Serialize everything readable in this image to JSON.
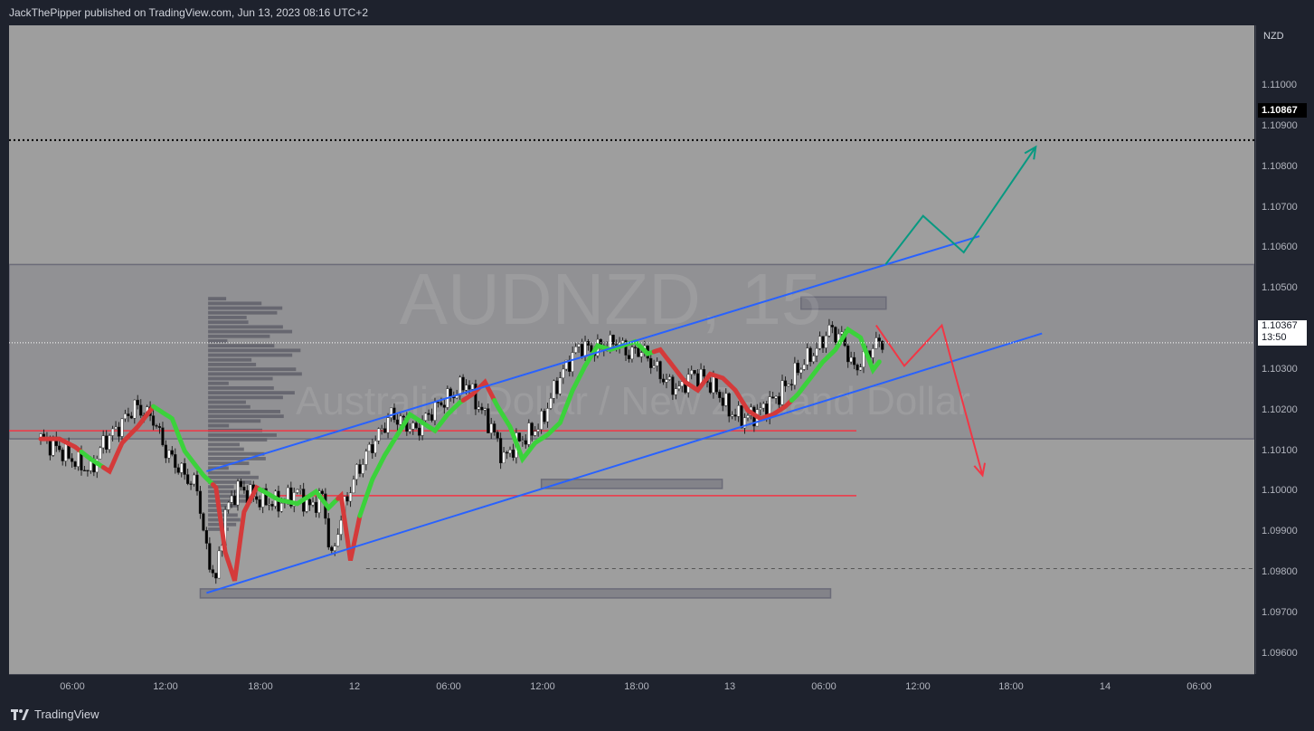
{
  "header": {
    "publisher_text": "JackThePipper published on TradingView.com, Jun 13, 2023 08:16 UTC+2"
  },
  "footer": {
    "brand": "TradingView"
  },
  "watermark": {
    "symbol": "AUDNZD, 15",
    "name": "Australian Dollar / New Zealand Dollar"
  },
  "price_scale": {
    "currency": "NZD",
    "ticks": [
      "1.11000",
      "1.10900",
      "1.10800",
      "1.10700",
      "1.10600",
      "1.10500",
      "1.10400",
      "1.10300",
      "1.10200",
      "1.10100",
      "1.10000",
      "1.09900",
      "1.09800",
      "1.09700",
      "1.09600"
    ],
    "target_price": "1.10867",
    "last_price": "1.10367",
    "countdown": "13:50"
  },
  "time_scale": {
    "ticks": [
      "06:00",
      "12:00",
      "18:00",
      "12",
      "06:00",
      "12:00",
      "18:00",
      "13",
      "06:00",
      "12:00",
      "18:00",
      "14",
      "06:00"
    ]
  },
  "colors": {
    "bull_candle": "#ffffff",
    "bear_candle": "#000000",
    "channel": "#2962ff",
    "support_resistance": "#f23645",
    "up_arrow": "#089981",
    "down_arrow": "#f23645",
    "ma_up": "#3bd23b",
    "ma_down": "#d43a3a"
  },
  "chart_data": {
    "type": "candlestick",
    "symbol": "AUDNZD",
    "timeframe": "15",
    "ylim": [
      1.0955,
      1.1115
    ],
    "x": [
      "06:00",
      "12:00",
      "18:00",
      "12",
      "06:00",
      "12:00",
      "18:00",
      "13",
      "06:00"
    ],
    "close_path": [
      [
        0,
        1.1013
      ],
      [
        0.5,
        1.1011
      ],
      [
        1,
        1.1008
      ],
      [
        1.6,
        1.1005
      ],
      [
        2,
        1.1012
      ],
      [
        2.5,
        1.1016
      ],
      [
        3,
        1.1021
      ],
      [
        3.6,
        1.1018
      ],
      [
        4,
        1.101
      ],
      [
        4.6,
        1.1004
      ],
      [
        5,
        1.1001
      ],
      [
        5.3,
        1.0985
      ],
      [
        5.6,
        1.0978
      ],
      [
        5.9,
        1.0995
      ],
      [
        6.3,
        1.1001
      ],
      [
        7,
        1.0998
      ],
      [
        7.6,
        1.0997
      ],
      [
        8.2,
        1.1
      ],
      [
        8.6,
        1.0996
      ],
      [
        9,
        1.0999
      ],
      [
        9.3,
        1.0983
      ],
      [
        9.6,
        1.0994
      ],
      [
        10,
        1.1003
      ],
      [
        10.4,
        1.1009
      ],
      [
        10.8,
        1.1014
      ],
      [
        11.2,
        1.1019
      ],
      [
        11.6,
        1.1017
      ],
      [
        12,
        1.1015
      ],
      [
        12.4,
        1.1019
      ],
      [
        12.8,
        1.1022
      ],
      [
        13.2,
        1.1024
      ],
      [
        13.6,
        1.1027
      ],
      [
        14,
        1.1021
      ],
      [
        14.4,
        1.1016
      ],
      [
        14.8,
        1.1008
      ],
      [
        15.2,
        1.1012
      ],
      [
        15.6,
        1.1014
      ],
      [
        16,
        1.1017
      ],
      [
        16.4,
        1.1025
      ],
      [
        16.8,
        1.1031
      ],
      [
        17.2,
        1.1036
      ],
      [
        17.6,
        1.1035
      ],
      [
        18,
        1.1036
      ],
      [
        18.4,
        1.1037
      ],
      [
        18.8,
        1.1034
      ],
      [
        19.2,
        1.1035
      ],
      [
        19.6,
        1.1031
      ],
      [
        20,
        1.1027
      ],
      [
        20.4,
        1.1025
      ],
      [
        20.8,
        1.1029
      ],
      [
        21.2,
        1.1028
      ],
      [
        21.6,
        1.1025
      ],
      [
        22,
        1.102
      ],
      [
        22.4,
        1.1018
      ],
      [
        22.8,
        1.1019
      ],
      [
        23.2,
        1.1021
      ],
      [
        23.6,
        1.1024
      ],
      [
        24,
        1.1028
      ],
      [
        24.4,
        1.1032
      ],
      [
        24.8,
        1.1035
      ],
      [
        25.2,
        1.104
      ],
      [
        25.6,
        1.1038
      ],
      [
        26,
        1.103
      ],
      [
        26.4,
        1.1034
      ],
      [
        26.8,
        1.1037
      ]
    ],
    "ma_segments": [
      {
        "trend": "down",
        "from": 0,
        "to": 1.3
      },
      {
        "trend": "up",
        "from": 1.3,
        "to": 2.0
      },
      {
        "trend": "down",
        "from": 2.0,
        "to": 3.6
      },
      {
        "trend": "up",
        "from": 3.6,
        "to": 5.5
      },
      {
        "trend": "down",
        "from": 5.5,
        "to": 7.0
      },
      {
        "trend": "up",
        "from": 7.0,
        "to": 9.5
      },
      {
        "trend": "down",
        "from": 9.5,
        "to": 10.2
      },
      {
        "trend": "up",
        "from": 10.2,
        "to": 13.5
      },
      {
        "trend": "down",
        "from": 13.5,
        "to": 14.5
      },
      {
        "trend": "up",
        "from": 14.5,
        "to": 19.6
      },
      {
        "trend": "down",
        "from": 19.6,
        "to": 24.0
      },
      {
        "trend": "up",
        "from": 24.0,
        "to": 26.8
      }
    ],
    "channel": {
      "upper": [
        [
          5.3,
          1.1005
        ],
        [
          30,
          1.1063
        ]
      ],
      "lower": [
        [
          5.3,
          1.0975
        ],
        [
          32,
          1.1039
        ]
      ]
    },
    "horizontal_levels": [
      {
        "price": 1.1015,
        "color": "red"
      },
      {
        "price": 1.0999,
        "color": "red"
      },
      {
        "price": 1.0981,
        "color": "dashed"
      },
      {
        "price": 1.10867,
        "color": "dotted"
      }
    ],
    "zones": [
      {
        "from": 1.1013,
        "to": 1.1056
      },
      {
        "from": 1.1045,
        "to": 1.1048
      },
      {
        "from": 1.1002,
        "to": 1.1003
      },
      {
        "from": 1.0975,
        "to": 1.0976
      }
    ],
    "projection_up": [
      [
        27,
        1.1056
      ],
      [
        28.2,
        1.1068
      ],
      [
        29.5,
        1.1059
      ],
      [
        31.8,
        1.1085
      ]
    ],
    "projection_down": [
      [
        26.7,
        1.1041
      ],
      [
        27.6,
        1.1031
      ],
      [
        28.8,
        1.1041
      ],
      [
        30.1,
        1.1004
      ]
    ]
  }
}
